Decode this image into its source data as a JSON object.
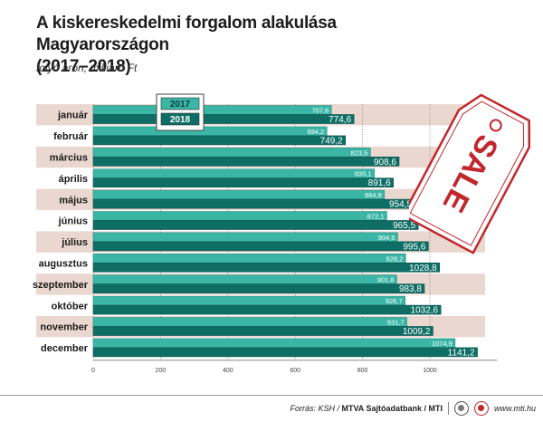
{
  "title_line1": "A kiskereskedelmi forgalom alakulása Magyarországon",
  "title_line2": "(2017–2018)",
  "subtitle": "folyó áron, milliárd Ft",
  "footer": {
    "source_label": "Forrás: KSH / ",
    "source_org": "MTVA Sajtóadatbank / MTI",
    "site": "www.mti.hu"
  },
  "sale_tag_text": "SALE",
  "colors": {
    "series_2017": "#3bb6a6",
    "series_2018": "#0e6e66",
    "band": "#ead7cf",
    "sale_red": "#c0282d"
  },
  "chart_data": {
    "type": "bar",
    "orientation": "horizontal",
    "categories": [
      "január",
      "február",
      "március",
      "április",
      "május",
      "június",
      "július",
      "augusztus",
      "szeptember",
      "október",
      "november",
      "december"
    ],
    "series": [
      {
        "name": "2017",
        "values": [
          707.6,
          694.2,
          823.5,
          835.1,
          864.9,
          872.1,
          904.5,
          928.2,
          901.8,
          926.7,
          931.7,
          1074.9
        ],
        "labels": [
          "707,6",
          "694,2",
          "823,5",
          "835,1",
          "864,9",
          "872,1",
          "904,5",
          "928,2",
          "901,8",
          "926,7",
          "931,7",
          "1074,9"
        ]
      },
      {
        "name": "2018",
        "values": [
          774.6,
          749.2,
          908.6,
          891.6,
          954.5,
          965.5,
          995.6,
          1028.8,
          983.8,
          1032.6,
          1009.2,
          1141.2
        ],
        "labels": [
          "774,6",
          "749,2",
          "908,6",
          "891,6",
          "954,5",
          "965,5",
          "995,6",
          "1028,8",
          "983,8",
          "1032,6",
          "1009,2",
          "1141,2"
        ]
      }
    ],
    "xlim": [
      0,
      1200
    ],
    "xticks": [
      0,
      200,
      400,
      600,
      800,
      1000
    ],
    "grid": true,
    "legend_position": "top-left"
  }
}
